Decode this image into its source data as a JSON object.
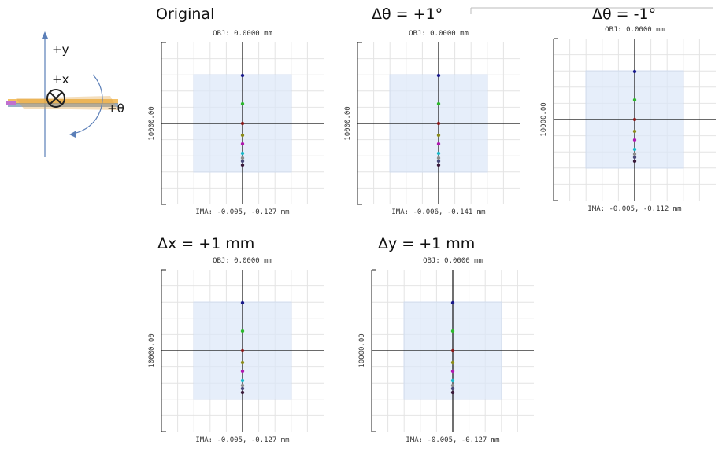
{
  "diagram": {
    "labels": [
      "+y",
      "+x",
      "+θ"
    ]
  },
  "panels": [
    {
      "title": "Original",
      "obj_label": "OBJ: 0.0000 mm",
      "y_label": "10000.00",
      "ima_label": "IMA: -0.005, -0.127 mm"
    },
    {
      "title": "Δθ = +1°",
      "obj_label": "OBJ: 0.0000 mm",
      "y_label": "10000.00",
      "ima_label": "IMA: -0.006, -0.141 mm"
    },
    {
      "title": "Δθ = -1°",
      "obj_label": "OBJ: 0.0000 mm",
      "y_label": "10000.00",
      "ima_label": "IMA: -0.005, -0.112 mm"
    },
    {
      "title": "Δx = +1 mm",
      "obj_label": "OBJ: 0.0000 mm",
      "y_label": "10000.00",
      "ima_label": "IMA: -0.005, -0.127 mm"
    },
    {
      "title": "Δy = +1 mm",
      "obj_label": "OBJ: 0.0000 mm",
      "y_label": "10000.00",
      "ima_label": "IMA: -0.005, -0.127 mm"
    }
  ],
  "dot_colors": [
    "#1a1a8c",
    "#2db82d",
    "#8b1a1a",
    "#8c8c1a",
    "#b01ab0",
    "#1ab8c8",
    "#8c8c8c",
    "#4a4a7a",
    "#3a1a3a"
  ]
}
